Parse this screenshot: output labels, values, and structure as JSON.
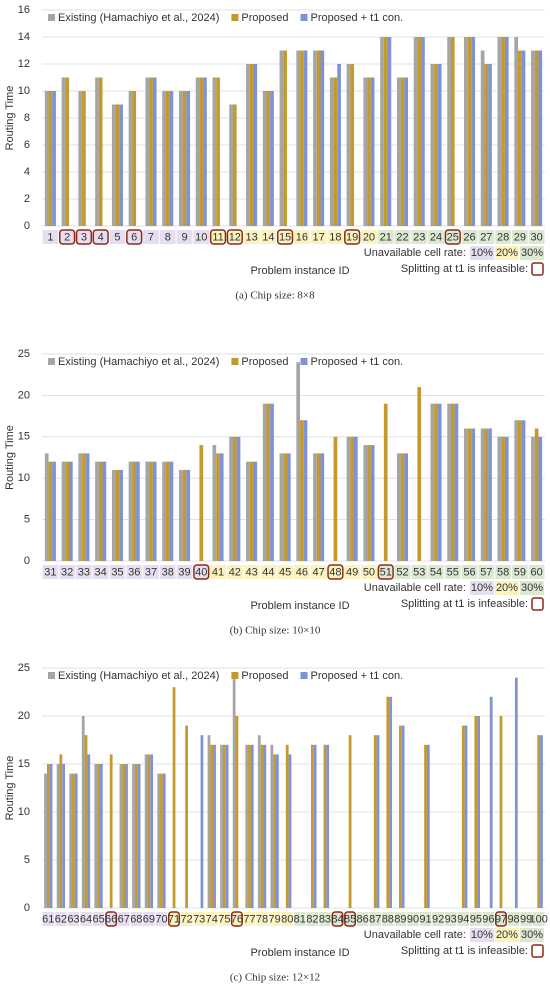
{
  "chart_data": [
    {
      "type": "bar",
      "caption": "(a) Chip size: 8×8",
      "x_label": "Problem instance ID",
      "y_label": "Routing Time",
      "categories": [
        "1",
        "2",
        "3",
        "4",
        "5",
        "6",
        "7",
        "8",
        "9",
        "10",
        "11",
        "12",
        "13",
        "14",
        "15",
        "16",
        "17",
        "18",
        "19",
        "20",
        "21",
        "22",
        "23",
        "24",
        "25",
        "26",
        "27",
        "28",
        "29",
        "30"
      ],
      "series": [
        {
          "name": "Existing (Hamachiyo et al., 2024)",
          "color": "#a5a5a5",
          "values": [
            10,
            11,
            10,
            11,
            9,
            10,
            11,
            10,
            10,
            11,
            11,
            9,
            12,
            10,
            13,
            13,
            13,
            11,
            12,
            11,
            14,
            11,
            14,
            12,
            14,
            14,
            13,
            14,
            14,
            13
          ]
        },
        {
          "name": "Proposed",
          "color": "#c49a2c",
          "values": [
            10,
            11,
            10,
            11,
            9,
            10,
            11,
            10,
            10,
            11,
            11,
            9,
            12,
            10,
            13,
            13,
            13,
            11,
            12,
            11,
            14,
            11,
            14,
            12,
            14,
            14,
            12,
            14,
            13,
            13
          ]
        },
        {
          "name": "Proposed + t1 con.",
          "color": "#7f92d6",
          "values": [
            10,
            null,
            null,
            null,
            9,
            null,
            11,
            10,
            10,
            11,
            null,
            null,
            12,
            10,
            null,
            13,
            13,
            12,
            null,
            11,
            14,
            11,
            14,
            12,
            null,
            14,
            12,
            14,
            13,
            13
          ]
        }
      ],
      "ylim": [
        0,
        16
      ],
      "yticks": [
        0,
        2,
        4,
        6,
        8,
        10,
        12,
        14,
        16
      ],
      "rate_note": "Unavailable cell rate:",
      "rates": [
        {
          "label": "10%",
          "color": "#e6def0"
        },
        {
          "label": "20%",
          "color": "#fbf3bf"
        },
        {
          "label": "30%",
          "color": "#dde8d2"
        }
      ],
      "category_rate": [
        0,
        0,
        0,
        0,
        0,
        0,
        0,
        0,
        0,
        0,
        1,
        1,
        1,
        1,
        1,
        1,
        1,
        1,
        1,
        1,
        2,
        2,
        2,
        2,
        2,
        2,
        2,
        2,
        2,
        2
      ],
      "infeasible_note": "Splitting at t1 is infeasible:",
      "infeasible": [
        false,
        true,
        true,
        true,
        false,
        true,
        false,
        false,
        false,
        false,
        true,
        true,
        false,
        false,
        true,
        false,
        false,
        false,
        true,
        false,
        false,
        false,
        false,
        false,
        true,
        false,
        false,
        false,
        false,
        false
      ]
    },
    {
      "type": "bar",
      "caption": "(b) Chip size: 10×10",
      "x_label": "Problem instance ID",
      "y_label": "Routing Time",
      "categories": [
        "31",
        "32",
        "33",
        "34",
        "35",
        "36",
        "37",
        "38",
        "39",
        "40",
        "41",
        "42",
        "43",
        "44",
        "45",
        "46",
        "47",
        "48",
        "49",
        "50",
        "51",
        "52",
        "53",
        "54",
        "55",
        "56",
        "57",
        "58",
        "59",
        "60"
      ],
      "series": [
        {
          "name": "Existing (Hamachiyo et al., 2024)",
          "color": "#a5a5a5",
          "values": [
            13,
            12,
            13,
            12,
            11,
            12,
            12,
            12,
            11,
            null,
            14,
            15,
            12,
            19,
            13,
            24,
            13,
            null,
            15,
            14,
            null,
            13,
            null,
            19,
            19,
            16,
            16,
            15,
            17,
            15
          ]
        },
        {
          "name": "Proposed",
          "color": "#c49a2c",
          "values": [
            12,
            12,
            13,
            12,
            11,
            12,
            12,
            12,
            11,
            14,
            13,
            15,
            12,
            19,
            13,
            17,
            13,
            15,
            15,
            14,
            19,
            13,
            21,
            19,
            19,
            16,
            16,
            15,
            17,
            16
          ]
        },
        {
          "name": "Proposed + t1 con.",
          "color": "#7f92d6",
          "values": [
            12,
            12,
            13,
            12,
            11,
            12,
            12,
            12,
            11,
            null,
            13,
            15,
            12,
            19,
            13,
            17,
            13,
            null,
            15,
            14,
            null,
            13,
            null,
            19,
            19,
            16,
            16,
            15,
            17,
            15
          ]
        }
      ],
      "ylim": [
        0,
        25
      ],
      "yticks": [
        0,
        5,
        10,
        15,
        20,
        25
      ],
      "rate_note": "Unavailable cell rate:",
      "rates": [
        {
          "label": "10%",
          "color": "#e6def0"
        },
        {
          "label": "20%",
          "color": "#fbf3bf"
        },
        {
          "label": "30%",
          "color": "#dde8d2"
        }
      ],
      "category_rate": [
        0,
        0,
        0,
        0,
        0,
        0,
        0,
        0,
        0,
        0,
        1,
        1,
        1,
        1,
        1,
        1,
        1,
        1,
        1,
        1,
        2,
        2,
        2,
        2,
        2,
        2,
        2,
        2,
        2,
        2
      ],
      "infeasible_note": "Splitting at t1 is infeasible:",
      "infeasible": [
        false,
        false,
        false,
        false,
        false,
        false,
        false,
        false,
        false,
        true,
        false,
        false,
        false,
        false,
        false,
        false,
        false,
        true,
        false,
        false,
        true,
        false,
        false,
        false,
        false,
        false,
        false,
        false,
        false,
        false
      ]
    },
    {
      "type": "bar",
      "caption": "(c) Chip size: 12×12",
      "x_label": "Problem instance ID",
      "y_label": "Routing Time",
      "categories": [
        "61",
        "62",
        "63",
        "64",
        "65",
        "66",
        "67",
        "68",
        "69",
        "70",
        "71",
        "72",
        "73",
        "74",
        "75",
        "76",
        "77",
        "78",
        "79",
        "80",
        "81",
        "82",
        "83",
        "84",
        "85",
        "86",
        "87",
        "88",
        "89",
        "90",
        "91",
        "92",
        "93",
        "94",
        "95",
        "96",
        "97",
        "98",
        "99",
        "100"
      ],
      "series": [
        {
          "name": "Existing (Hamachiyo et al., 2024)",
          "color": "#a5a5a5",
          "values": [
            14,
            15,
            14,
            20,
            15,
            null,
            15,
            15,
            16,
            14,
            null,
            null,
            null,
            18,
            17,
            24,
            17,
            18,
            17,
            null,
            null,
            null,
            null,
            null,
            null,
            null,
            null,
            null,
            null,
            null,
            null,
            null,
            null,
            null,
            null,
            null,
            null,
            null,
            null,
            null
          ]
        },
        {
          "name": "Proposed",
          "color": "#c49a2c",
          "values": [
            15,
            16,
            14,
            18,
            15,
            16,
            15,
            15,
            16,
            14,
            23,
            19,
            null,
            17,
            17,
            20,
            17,
            17,
            16,
            17,
            null,
            17,
            17,
            null,
            18,
            null,
            18,
            22,
            19,
            null,
            17,
            null,
            null,
            19,
            20,
            null,
            20,
            null,
            null,
            18
          ]
        },
        {
          "name": "Proposed + t1 con.",
          "color": "#7f92d6",
          "values": [
            15,
            15,
            14,
            16,
            15,
            null,
            15,
            15,
            16,
            14,
            null,
            null,
            18,
            17,
            17,
            null,
            17,
            17,
            16,
            16,
            null,
            17,
            17,
            null,
            null,
            null,
            18,
            22,
            19,
            null,
            17,
            null,
            null,
            19,
            20,
            22,
            null,
            24,
            null,
            18
          ]
        }
      ],
      "ylim": [
        0,
        25
      ],
      "yticks": [
        0,
        5,
        10,
        15,
        20,
        25
      ],
      "rate_note": "Unavailable cell rate:",
      "rates": [
        {
          "label": "10%",
          "color": "#e6def0"
        },
        {
          "label": "20%",
          "color": "#fbf3bf"
        },
        {
          "label": "30%",
          "color": "#dde8d2"
        }
      ],
      "category_rate": [
        0,
        0,
        0,
        0,
        0,
        0,
        0,
        0,
        0,
        0,
        1,
        1,
        1,
        1,
        1,
        1,
        1,
        1,
        1,
        1,
        2,
        2,
        2,
        2,
        2,
        2,
        2,
        2,
        2,
        2,
        2,
        2,
        2,
        2,
        2,
        2,
        2,
        2,
        2,
        2
      ],
      "infeasible_note": "Splitting at t1 is infeasible:",
      "infeasible": [
        false,
        false,
        false,
        false,
        false,
        true,
        false,
        false,
        false,
        false,
        true,
        false,
        false,
        false,
        false,
        true,
        false,
        false,
        false,
        false,
        false,
        false,
        false,
        true,
        true,
        false,
        false,
        false,
        false,
        false,
        false,
        false,
        false,
        false,
        false,
        false,
        true,
        false,
        false,
        false
      ]
    }
  ]
}
